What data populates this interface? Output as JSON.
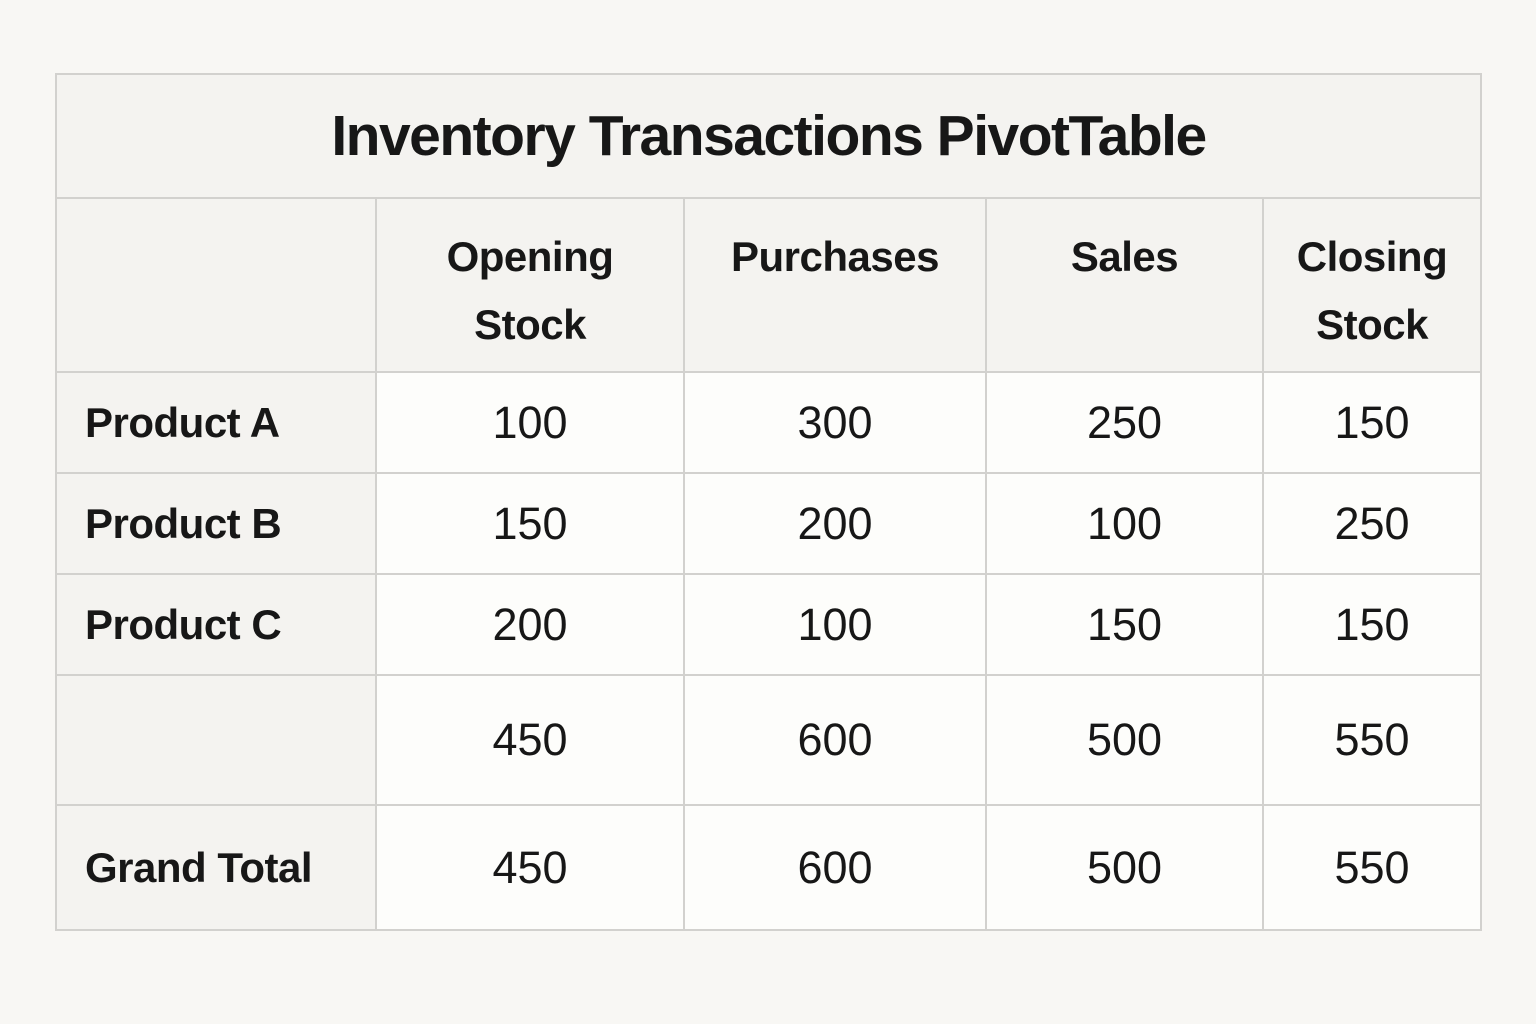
{
  "chart_data": {
    "type": "table",
    "title": "Inventory Transactions PivotTable",
    "columns": [
      "Opening Stock",
      "Purchases",
      "Sales",
      "Closing Stock"
    ],
    "row_labels": [
      "Product A",
      "Product B",
      "Product C",
      "",
      "Grand Total"
    ],
    "rows": [
      [
        100,
        300,
        250,
        150
      ],
      [
        150,
        200,
        100,
        250
      ],
      [
        200,
        100,
        150,
        150
      ],
      [
        450,
        600,
        500,
        550
      ],
      [
        450,
        600,
        500,
        550
      ]
    ],
    "layout": {
      "grid": "on",
      "title_position": "top-spanning-row",
      "row_header_column": "left",
      "subtotal_row_label": "",
      "grand_total_row_label": "Grand Total"
    }
  },
  "colors": {
    "page_background": "#f8f7f4",
    "header_cell_background": "#f4f3f0",
    "data_cell_background": "#fdfdfb",
    "border": "#d2d1ce",
    "text": "#171717"
  }
}
